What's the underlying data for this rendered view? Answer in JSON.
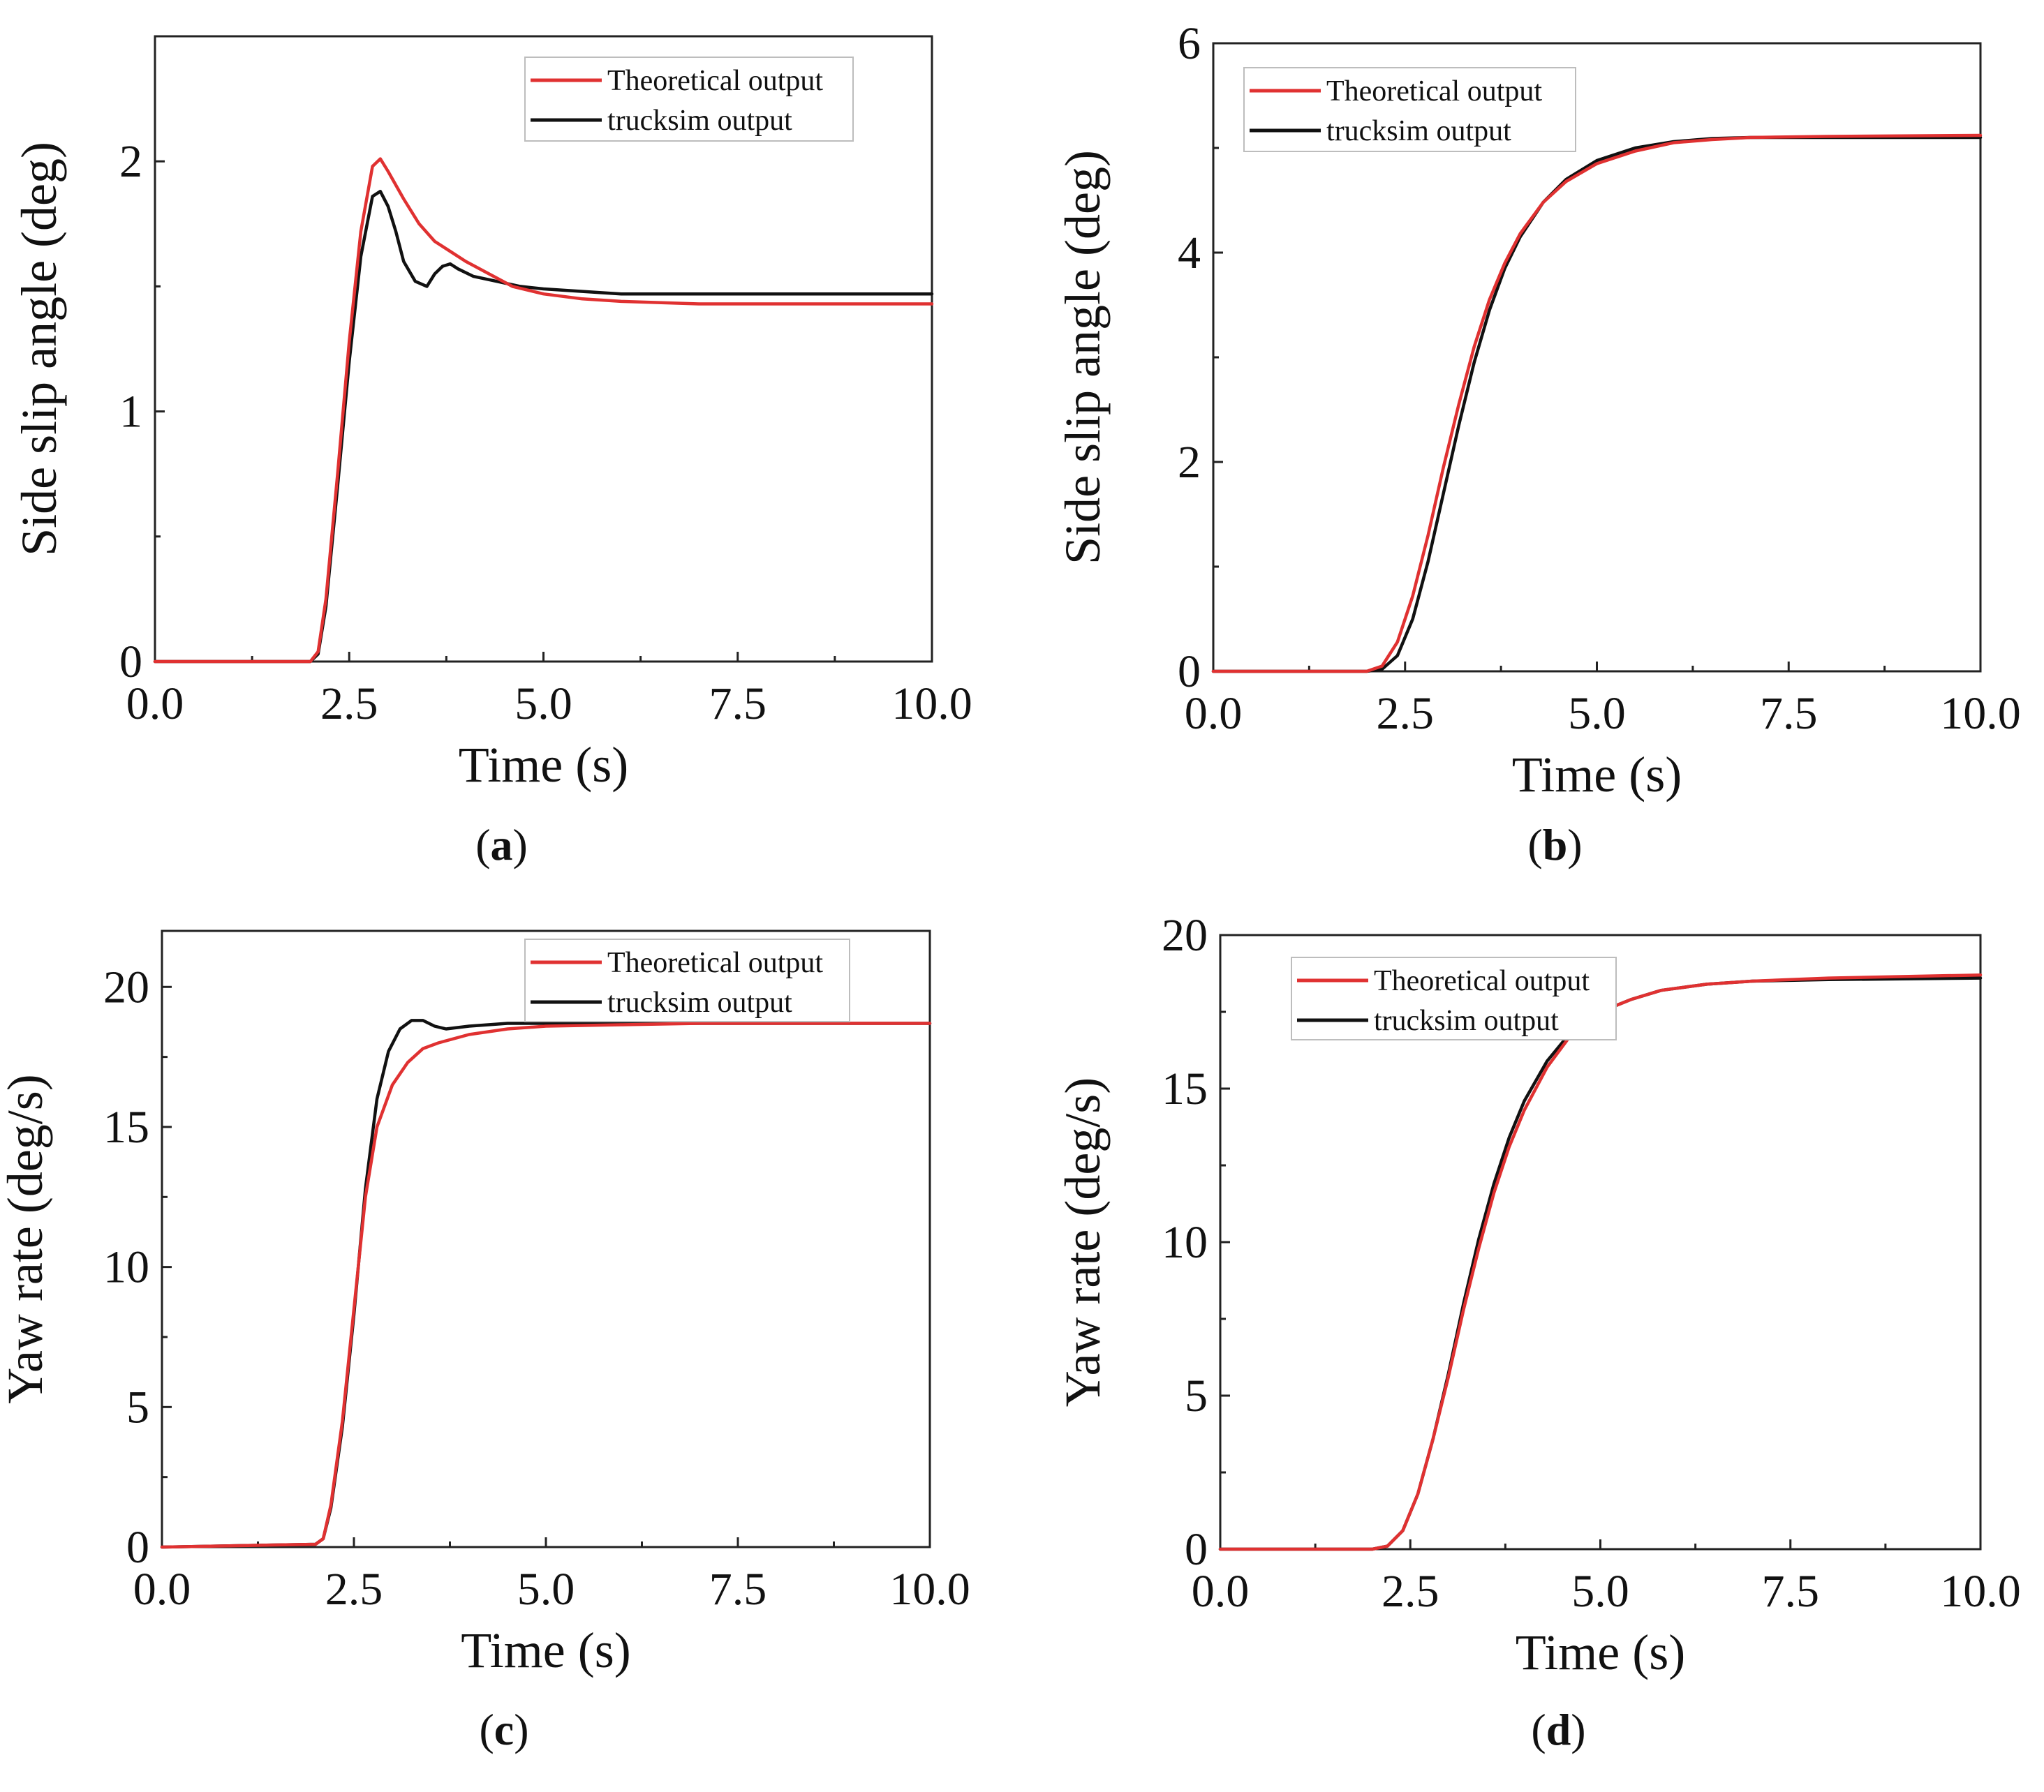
{
  "chart_data": [
    {
      "type": "line",
      "panel_label": "a",
      "title": "",
      "xlabel": "Time (s)",
      "ylabel": "Side slip angle (deg)",
      "xlim": [
        0,
        10
      ],
      "ylim": [
        0,
        2.5
      ],
      "xticks": [
        "0.0",
        "2.5",
        "5.0",
        "7.5",
        "10.0"
      ],
      "yticks": [
        "0",
        "1",
        "2"
      ],
      "ytick_values": [
        0,
        1,
        2
      ],
      "grid": false,
      "legend_position": "top-right",
      "series": [
        {
          "name": "Theoretical output",
          "color": "#e03131",
          "x": [
            0,
            1.0,
            2.0,
            2.1,
            2.2,
            2.35,
            2.5,
            2.65,
            2.8,
            2.9,
            3.0,
            3.2,
            3.4,
            3.6,
            3.8,
            4.0,
            4.3,
            4.6,
            5.0,
            5.5,
            6.0,
            7.0,
            8.0,
            10.0
          ],
          "y": [
            0,
            0,
            0,
            0.04,
            0.25,
            0.75,
            1.28,
            1.72,
            1.98,
            2.01,
            1.96,
            1.85,
            1.75,
            1.68,
            1.64,
            1.6,
            1.55,
            1.5,
            1.47,
            1.45,
            1.44,
            1.43,
            1.43,
            1.43
          ]
        },
        {
          "name": "trucksim output",
          "color": "#111111",
          "x": [
            0,
            1.0,
            2.0,
            2.1,
            2.2,
            2.35,
            2.5,
            2.65,
            2.8,
            2.9,
            3.0,
            3.1,
            3.2,
            3.35,
            3.5,
            3.6,
            3.7,
            3.8,
            3.9,
            4.1,
            4.4,
            4.7,
            5.0,
            6.0,
            7.0,
            8.0,
            10.0
          ],
          "y": [
            0,
            0,
            0,
            0.03,
            0.22,
            0.7,
            1.2,
            1.62,
            1.86,
            1.88,
            1.82,
            1.72,
            1.6,
            1.52,
            1.5,
            1.55,
            1.58,
            1.59,
            1.57,
            1.54,
            1.52,
            1.5,
            1.49,
            1.47,
            1.47,
            1.47,
            1.47
          ]
        }
      ]
    },
    {
      "type": "line",
      "panel_label": "b",
      "title": "",
      "xlabel": "Time (s)",
      "ylabel": "Side slip angle (deg)",
      "xlim": [
        0,
        10
      ],
      "ylim": [
        0,
        6
      ],
      "xticks": [
        "0.0",
        "2.5",
        "5.0",
        "7.5",
        "10.0"
      ],
      "yticks": [
        "0",
        "2",
        "4",
        "6"
      ],
      "ytick_values": [
        0,
        2,
        4,
        6
      ],
      "grid": false,
      "legend_position": "top-left",
      "series": [
        {
          "name": "Theoretical output",
          "color": "#e03131",
          "x": [
            0,
            1.0,
            2.0,
            2.2,
            2.4,
            2.6,
            2.8,
            3.0,
            3.2,
            3.4,
            3.6,
            3.8,
            4.0,
            4.3,
            4.6,
            5.0,
            5.5,
            6.0,
            6.5,
            7.0,
            8.0,
            10.0
          ],
          "y": [
            0,
            0,
            0,
            0.05,
            0.28,
            0.72,
            1.3,
            1.95,
            2.55,
            3.1,
            3.55,
            3.9,
            4.18,
            4.48,
            4.68,
            4.85,
            4.97,
            5.05,
            5.08,
            5.1,
            5.11,
            5.12
          ]
        },
        {
          "name": "trucksim output",
          "color": "#111111",
          "x": [
            0,
            1.0,
            2.0,
            2.2,
            2.4,
            2.6,
            2.8,
            3.0,
            3.2,
            3.4,
            3.6,
            3.8,
            4.0,
            4.3,
            4.6,
            5.0,
            5.5,
            6.0,
            6.5,
            7.0,
            8.0,
            10.0
          ],
          "y": [
            0,
            0,
            0,
            0.02,
            0.15,
            0.5,
            1.05,
            1.7,
            2.35,
            2.95,
            3.45,
            3.85,
            4.15,
            4.48,
            4.7,
            4.88,
            5.0,
            5.06,
            5.09,
            5.1,
            5.1,
            5.1
          ]
        }
      ]
    },
    {
      "type": "line",
      "panel_label": "c",
      "title": "",
      "xlabel": "Time (s)",
      "ylabel": "Yaw rate (deg/s)",
      "xlim": [
        0,
        10
      ],
      "ylim": [
        0,
        22
      ],
      "xticks": [
        "0.0",
        "2.5",
        "5.0",
        "7.5",
        "10.0"
      ],
      "yticks": [
        "0",
        "5",
        "10",
        "15",
        "20"
      ],
      "ytick_values": [
        0,
        5,
        10,
        15,
        20
      ],
      "grid": false,
      "legend_position": "top-right",
      "series": [
        {
          "name": "Theoretical output",
          "color": "#e03131",
          "x": [
            0,
            1.0,
            2.0,
            2.1,
            2.2,
            2.35,
            2.5,
            2.65,
            2.8,
            3.0,
            3.2,
            3.4,
            3.6,
            4.0,
            4.5,
            5.0,
            6.0,
            7.0,
            10.0
          ],
          "y": [
            0,
            0.05,
            0.1,
            0.3,
            1.5,
            4.5,
            8.5,
            12.5,
            15.0,
            16.5,
            17.3,
            17.8,
            18.0,
            18.3,
            18.5,
            18.6,
            18.65,
            18.7,
            18.7
          ]
        },
        {
          "name": "trucksim output",
          "color": "#111111",
          "x": [
            0,
            1.0,
            2.0,
            2.1,
            2.2,
            2.35,
            2.5,
            2.65,
            2.8,
            2.95,
            3.1,
            3.25,
            3.4,
            3.55,
            3.7,
            4.0,
            4.5,
            5.0,
            6.0,
            7.0,
            10.0
          ],
          "y": [
            0,
            0.05,
            0.1,
            0.3,
            1.4,
            4.3,
            8.3,
            12.8,
            16.0,
            17.7,
            18.5,
            18.8,
            18.8,
            18.6,
            18.5,
            18.6,
            18.7,
            18.7,
            18.7,
            18.7,
            18.7
          ]
        }
      ]
    },
    {
      "type": "line",
      "panel_label": "d",
      "title": "",
      "xlabel": "Time (s)",
      "ylabel": "Yaw rate (deg/s)",
      "xlim": [
        0,
        10
      ],
      "ylim": [
        0,
        20
      ],
      "xticks": [
        "0.0",
        "2.5",
        "5.0",
        "7.5",
        "10.0"
      ],
      "yticks": [
        "0",
        "5",
        "10",
        "15",
        "20"
      ],
      "ytick_values": [
        0,
        5,
        10,
        15,
        20
      ],
      "grid": false,
      "legend_position": "top-left",
      "series": [
        {
          "name": "Theoretical output",
          "color": "#e03131",
          "x": [
            0,
            1.0,
            2.0,
            2.2,
            2.4,
            2.6,
            2.8,
            3.0,
            3.2,
            3.4,
            3.6,
            3.8,
            4.0,
            4.3,
            4.6,
            5.0,
            5.4,
            5.8,
            6.4,
            7.0,
            8.0,
            10.0
          ],
          "y": [
            0,
            0,
            0,
            0.1,
            0.6,
            1.8,
            3.6,
            5.6,
            7.8,
            9.8,
            11.6,
            13.1,
            14.3,
            15.7,
            16.7,
            17.5,
            17.9,
            18.2,
            18.4,
            18.5,
            18.6,
            18.7
          ]
        },
        {
          "name": "trucksim output",
          "color": "#111111",
          "x": [
            0,
            1.0,
            2.0,
            2.2,
            2.4,
            2.6,
            2.8,
            3.0,
            3.2,
            3.4,
            3.6,
            3.8,
            4.0,
            4.3,
            4.6,
            5.0,
            5.4,
            5.8,
            6.4,
            7.0,
            8.0,
            10.0
          ],
          "y": [
            0,
            0,
            0,
            0.1,
            0.6,
            1.8,
            3.6,
            5.7,
            8.0,
            10.1,
            11.9,
            13.4,
            14.6,
            15.9,
            16.8,
            17.5,
            17.9,
            18.2,
            18.4,
            18.5,
            18.55,
            18.6
          ]
        }
      ]
    }
  ]
}
